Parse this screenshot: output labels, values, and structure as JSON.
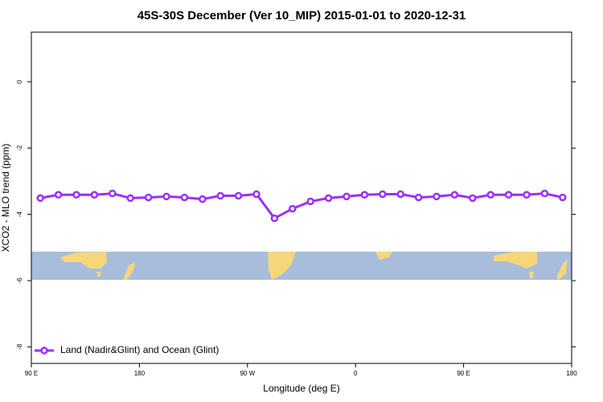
{
  "chart_data": {
    "type": "line",
    "title": "45S-30S December (Ver 10_MIP)   2015-01-01 to 2020-12-31",
    "x_label": "Longitude (deg E)",
    "y_label": "XCO2 - MLO trend (ppm)",
    "x": [
      97.5,
      112.5,
      127.5,
      142.5,
      157.5,
      172.5,
      187.5,
      202.5,
      217.5,
      232.5,
      247.5,
      262.5,
      277.5,
      292.5,
      307.5,
      322.5,
      337.5,
      352.5,
      367.5,
      382.5,
      397.5,
      412.5,
      427.5,
      442.5,
      457.5,
      472.5,
      487.5,
      502.5,
      517.5,
      532.5
    ],
    "series": [
      {
        "name": "Land (Nadir&Glint) and Ocean (Glint)",
        "color": "#9b30ff",
        "values": [
          -3.51,
          -3.41,
          -3.41,
          -3.41,
          -3.37,
          -3.51,
          -3.49,
          -3.46,
          -3.49,
          -3.54,
          -3.44,
          -3.44,
          -3.39,
          -4.12,
          -3.83,
          -3.61,
          -3.51,
          -3.46,
          -3.41,
          -3.39,
          -3.39,
          -3.49,
          -3.46,
          -3.41,
          -3.51,
          -3.41,
          -3.41,
          -3.41,
          -3.37,
          -3.49
        ]
      }
    ],
    "xlim": [
      90,
      540
    ],
    "xticks": [
      {
        "value": 90,
        "label": "90 E"
      },
      {
        "value": 180,
        "label": "180"
      },
      {
        "value": 270,
        "label": "90 W"
      },
      {
        "value": 360,
        "label": "0"
      },
      {
        "value": 450,
        "label": "90 E"
      },
      {
        "value": 540,
        "label": "180"
      }
    ],
    "ylim": [
      -8.5,
      1.5
    ],
    "yticks": [
      0,
      -2,
      -4,
      -6,
      -8
    ],
    "legend": "bottom-left"
  }
}
